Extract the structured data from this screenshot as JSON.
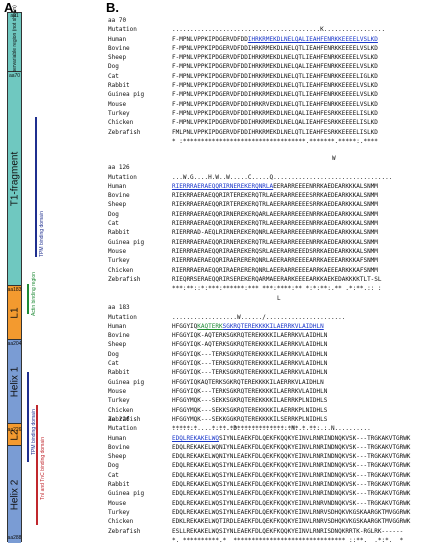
{
  "panel_a": {
    "label": "A.",
    "aa_marks": [
      "aa1",
      "aa70",
      "aa183",
      "aa204",
      "aa226",
      "aa288"
    ],
    "segments": [
      {
        "label": "Hypervariable region (not shown)",
        "color": "#6fc8c0"
      },
      {
        "label": "T1-fragment",
        "color": "#6fc8c0"
      },
      {
        "label": "L1",
        "color": "#f39a2f"
      },
      {
        "label": "Helix 1",
        "color": "#7a9cd4"
      },
      {
        "label": "L2",
        "color": "#f39a2f"
      },
      {
        "label": "Helix 2",
        "color": "#7a9cd4"
      }
    ],
    "annotations": [
      {
        "label": "TPM binding domain",
        "color": "#1f2f8f"
      },
      {
        "label": "Actin binding region",
        "color": "#1e8a35"
      },
      {
        "label": "TPM binding domain",
        "color": "#1f2f8f"
      },
      {
        "label": "TnI and TnC binding domain",
        "color": "#c0272d"
      }
    ]
  },
  "panel_b": {
    "label": "B.",
    "blocks": [
      {
        "aa": "aa 70",
        "mutation": ".........................................K.................",
        "species": [
          {
            "name": "Human",
            "pre": "F-MPNLVPPKIPDGERVDFDD",
            "hl": "IHRKRMEKDLNELQALIEAHFENRKKEEEELVSLKD",
            "post": ""
          },
          {
            "name": "Bovine",
            "pre": "F-MPNLVPPKIPDGERVDFDDIHRKRMEKDLNELQTLIEAHFENRKKEEEELVSLKD",
            "hl": "",
            "post": ""
          },
          {
            "name": "Sheep",
            "pre": "F-MPNLVPPKIPDGERVDFDDIHRKRMEKDLNELQTLIEAHFENRKKEEEELVSLKD",
            "hl": "",
            "post": ""
          },
          {
            "name": "Dog",
            "pre": "F-MPNLVPPKIPDGERVDFDDIHRKRMEKDLNELQALIEAHFENRKKEEEELVSLKD",
            "hl": "",
            "post": ""
          },
          {
            "name": "Cat",
            "pre": "F-MPNLVPPKIPDGERVDFDDIHRKRMEKDLNELQTLIEAHFENRKKEEEELIGLKD",
            "hl": "",
            "post": ""
          },
          {
            "name": "Rabbit",
            "pre": "F-MPNLVPPKIPDGERVDFDDIHRKRMEKDLNELQTLIEAHFENRKKEEEELVSLKD",
            "hl": "",
            "post": ""
          },
          {
            "name": "Guinea pig",
            "pre": "F-MPNLVPPKIPDGERVDFDDIHRKRMEKDLNELQTLIEAHFENRKKEEEELVSLKD",
            "hl": "",
            "post": ""
          },
          {
            "name": "Mouse",
            "pre": "F-MPNLVPPKIPDGERVDFDDIHRKRVEKDLNELQTLIEAHFENRKKEEEELVSLKD",
            "hl": "",
            "post": ""
          },
          {
            "name": "Turkey",
            "pre": "F-MPNLVPPKIPDGERVDFDDIHRKRMEKDLNELQALIEAHFESRKKEEEELISLKD",
            "hl": "",
            "post": ""
          },
          {
            "name": "Chicken",
            "pre": "F-MPNLVPPKIPDGERVDFDDIHRKRMEKDLNELQALIEAHFESRKKEEEELISLKD",
            "hl": "",
            "post": ""
          },
          {
            "name": "Zebrafish",
            "pre": "FMLPNLVPPKIPDGERVDFDDIHRKRMEKDLNELQTLIEAHFESRKKEEEELISLKD",
            "hl": "",
            "post": ""
          }
        ],
        "conservation": "* :**********************************.*******.*****:.****"
      },
      {
        "aa": "aa 126",
        "mutation": "...W.G....H.W..W.....C.....Q.................................",
        "mutation_top": "W",
        "species": [
          {
            "name": "Human",
            "pre": "",
            "hl": "RIERRRAERAEQQRIRNEREKERQNRLA",
            "post": "EERARREEEENRRKAEDEARKKKALSNMM"
          },
          {
            "name": "Bovine",
            "pre": "RIEKRRAERAEQQRIRTEREKERQTRLAEERARREEEESRRKAEDEARKKKALSNMM",
            "hl": "",
            "post": ""
          },
          {
            "name": "Sheep",
            "pre": "RIEKRRAERAEQQRIRTEREKERQTRLAEERARREEEESRRKAEDEARKKKALSNMM",
            "hl": "",
            "post": ""
          },
          {
            "name": "Dog",
            "pre": "RIERRRAERAEQQRIRNEREKERQARLAEERARREEEENRRKAEDEARKKKALSNMM",
            "hl": "",
            "post": ""
          },
          {
            "name": "Cat",
            "pre": "RIERRRAERAEQQRIRNEREKERQTRLAEERARREEEENRRKAEDEARKKKALSNMM",
            "hl": "",
            "post": ""
          },
          {
            "name": "Rabbit",
            "pre": "RIERRRAD-AEQLRIRNEREKERQNRLAEERARREEEENRRKAEDEARKKKALSNMM",
            "hl": "",
            "post": ""
          },
          {
            "name": "Guinea pig",
            "pre": "RIERRRAERAEQQRIRNEREKERQTRLAEERARREEEENRRKAEDEARKKKALSNMM",
            "hl": "",
            "post": ""
          },
          {
            "name": "Mouse",
            "pre": "RIERRRAERAEQQRIRAEREKERQSRLAEERARREEEDSRRKAEDEARKKKALSNMM",
            "hl": "",
            "post": ""
          },
          {
            "name": "Turkey",
            "pre": "RIERRRAERAEQQRIRAERERERQNRLAEERARREEEEARRKAEEEARKKKAFSNMM",
            "hl": "",
            "post": ""
          },
          {
            "name": "Chicken",
            "pre": "RIERRRAERAEQQRIRAERERERQNRLAEERARREEEEARRKAEEEARKKKAFSNMM",
            "hl": "",
            "post": ""
          },
          {
            "name": "Zebrafish",
            "pre": "RIEQRRSERAEQQRIRSEREKERQARMAEERARKEEEEARKKAEKEDAKKKKTLT-SL",
            "hl": "",
            "post": ""
          }
        ],
        "conservation": "***:**::*:***:******:*** ***:****:** *:*:**:.** .*:**.:: :"
      },
      {
        "aa": "aa 183",
        "mutation": "..................W....../......................",
        "mutation_top": "L",
        "species": [
          {
            "name": "Human",
            "pre": "HFGGYIQ",
            "hl": "KAQTERK",
            "hl2": "SGKRQTEREKKKKILAERRKVLAIDHLN",
            "post": ""
          },
          {
            "name": "Bovine",
            "pre": "HFGGYIQK-AQTERKSGKRQTEREKKKKILAERRKVLAIDHLN",
            "hl": "",
            "post": ""
          },
          {
            "name": "Sheep",
            "pre": "HFGGYIQK-AQTERKSGKRQTEREKKKKILAERRKVLAIDHLN",
            "hl": "",
            "post": ""
          },
          {
            "name": "Dog",
            "pre": "HFGGYIQK---TERKSGKRQTEREKKKKILAERRKVLAIDHLN",
            "hl": "",
            "post": ""
          },
          {
            "name": "Cat",
            "pre": "HFGGYIQK---TERKSGKRQTEREKKKKILAERRKVLAIDHLN",
            "hl": "",
            "post": ""
          },
          {
            "name": "Rabbit",
            "pre": "HFGGYIQK---TERKSGKRQTEREKKKKILAERRKVLAIDHLN",
            "hl": "",
            "post": ""
          },
          {
            "name": "Guinea pig",
            "pre": "HFGGYIQKAQTERKSGKRQTEREKKKKILAERRKVLAIDHLN",
            "hl": "",
            "post": ""
          },
          {
            "name": "Mouse",
            "pre": "HFGGYIQK---TERKSGKRQTEREKKKKILAERRKVLAIDHLN",
            "hl": "",
            "post": ""
          },
          {
            "name": "Turkey",
            "pre": "HFGGYMQK---SEKKSGKRQTEREKKKKILAERRKPLNIDHLS",
            "hl": "",
            "post": ""
          },
          {
            "name": "Chicken",
            "pre": "HFGGYMQK---SEKKSGKRQTEREKKKKILAERRKPLNIDHLS",
            "hl": "",
            "post": ""
          },
          {
            "name": "Zebrafish",
            "pre": "HFGGYMQK---SEKKGGKRQTEREKKKKILSERRKPLNIDHLS",
            "hl": "",
            "post": ""
          }
        ],
        "conservation": "*****:*    *:**.***************:*** * **: :"
      },
      {
        "aa": "aa 226",
        "mutation": ".................D...............N..........N..........",
        "species": [
          {
            "name": "Human",
            "pre": "",
            "hl": "EDQLREKAKELWQ",
            "post": "SIYNLEAEKFDLQEKFKQQKYEINVLRNRINDNQKVSK---TRGKAKVTGRWK"
          },
          {
            "name": "Bovine",
            "pre": "EDQLREKAKELWQNIYNLEAEKFDLQEKFKQQKYEINVLRNRINDNQKVSK---TRGKAKVTGRWK",
            "hl": "",
            "post": ""
          },
          {
            "name": "Sheep",
            "pre": "EDQLREKAKELWQNIYNLEAEKFDLQEKFKQQKYEINVLRNRINDNQKVSK---TRGKAKVTGRWK",
            "hl": "",
            "post": ""
          },
          {
            "name": "Dog",
            "pre": "EDQLREKAKELWQSIYNLEAEKFDLQEKFKQQKYEINVLRNRINDNQKVSK---TRGKAKVTGRWK",
            "hl": "",
            "post": ""
          },
          {
            "name": "Cat",
            "pre": "EDQLREKAKELWQSIYNLEAEKFDLQEKFKQQKYEINVLRNRINDNQKVSK---TRGKAKVTGRWK",
            "hl": "",
            "post": ""
          },
          {
            "name": "Rabbit",
            "pre": "EDQLREKAKELWQSIYNLEAEKFDLQEKFKQQKYEINVLRNRINDNQKVSK---TRGKAKVTGRWK",
            "hl": "",
            "post": ""
          },
          {
            "name": "Guinea pig",
            "pre": "EDQLREKAKELWQSIYNLEAEKFDLQEKFKQQKYEINVLRNRINDNQKVSK---TRGKAKVTGRWK",
            "hl": "",
            "post": ""
          },
          {
            "name": "Mouse",
            "pre": "EDQLREKAKELWQSIYNLEAEKFDLQEKFKQQKYEINVLRNRVNDNQKVSK---TRGKAKVTGRWK",
            "hl": "",
            "post": ""
          },
          {
            "name": "Turkey",
            "pre": "EDQLREKAKELWQSIYNLEAEKFDLQEKFKQQKYEINVLRNRVSDHQKVKGSKAARGKTMVGGRWK",
            "hl": "",
            "post": ""
          },
          {
            "name": "Chicken",
            "pre": "EDKLREKAKELWQTIRDLEAEKFDLQEKFKQQKYEINVLRNRVSDHQKVKGSKAARGKTMVGGRWK",
            "hl": "",
            "post": ""
          },
          {
            "name": "Zebrafish",
            "pre": "ESLLREKAKELWQSIYNLEAEKFDLQEKFKQQKYEINVLRNRISDNQKRRTK-RGLRK------",
            "hl": "",
            "post": ""
          }
        ],
        "conservation": "*. **********.*  ******************************* ::**.  .*:*.  * "
      }
    ]
  }
}
